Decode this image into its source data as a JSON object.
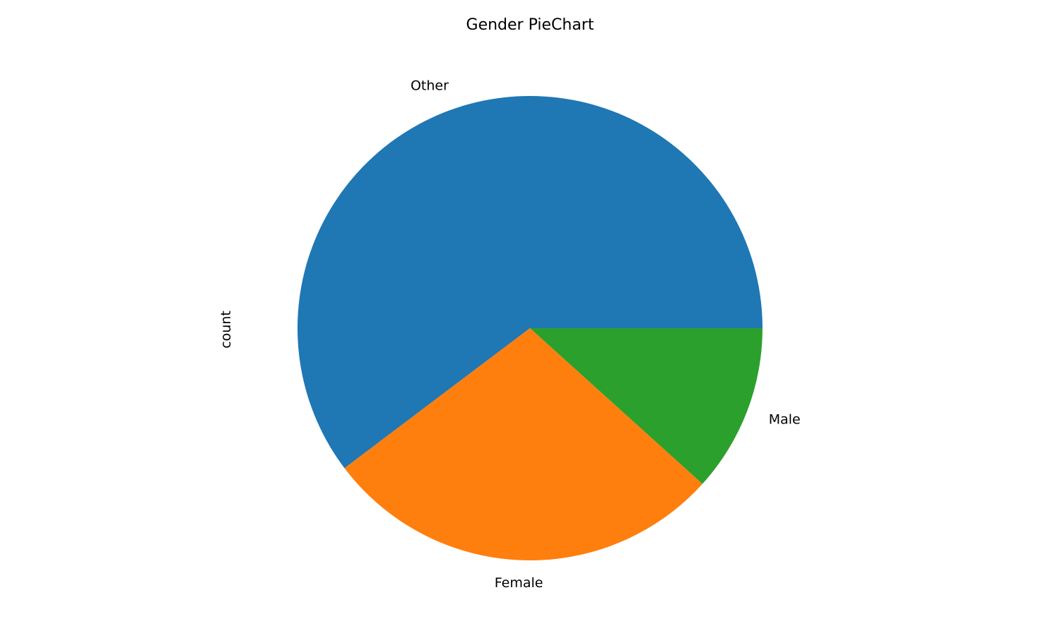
{
  "chart_data": {
    "type": "pie",
    "title": "Gender PieChart",
    "ylabel": "count",
    "xlabel": "",
    "start_angle_deg": 0,
    "direction": "counterclockwise",
    "slices": [
      {
        "label": "Other",
        "value": 60.3,
        "color": "#1f77b4"
      },
      {
        "label": "Female",
        "value": 28.0,
        "color": "#ff7f0e"
      },
      {
        "label": "Male",
        "value": 11.7,
        "color": "#2ca02c"
      }
    ]
  }
}
